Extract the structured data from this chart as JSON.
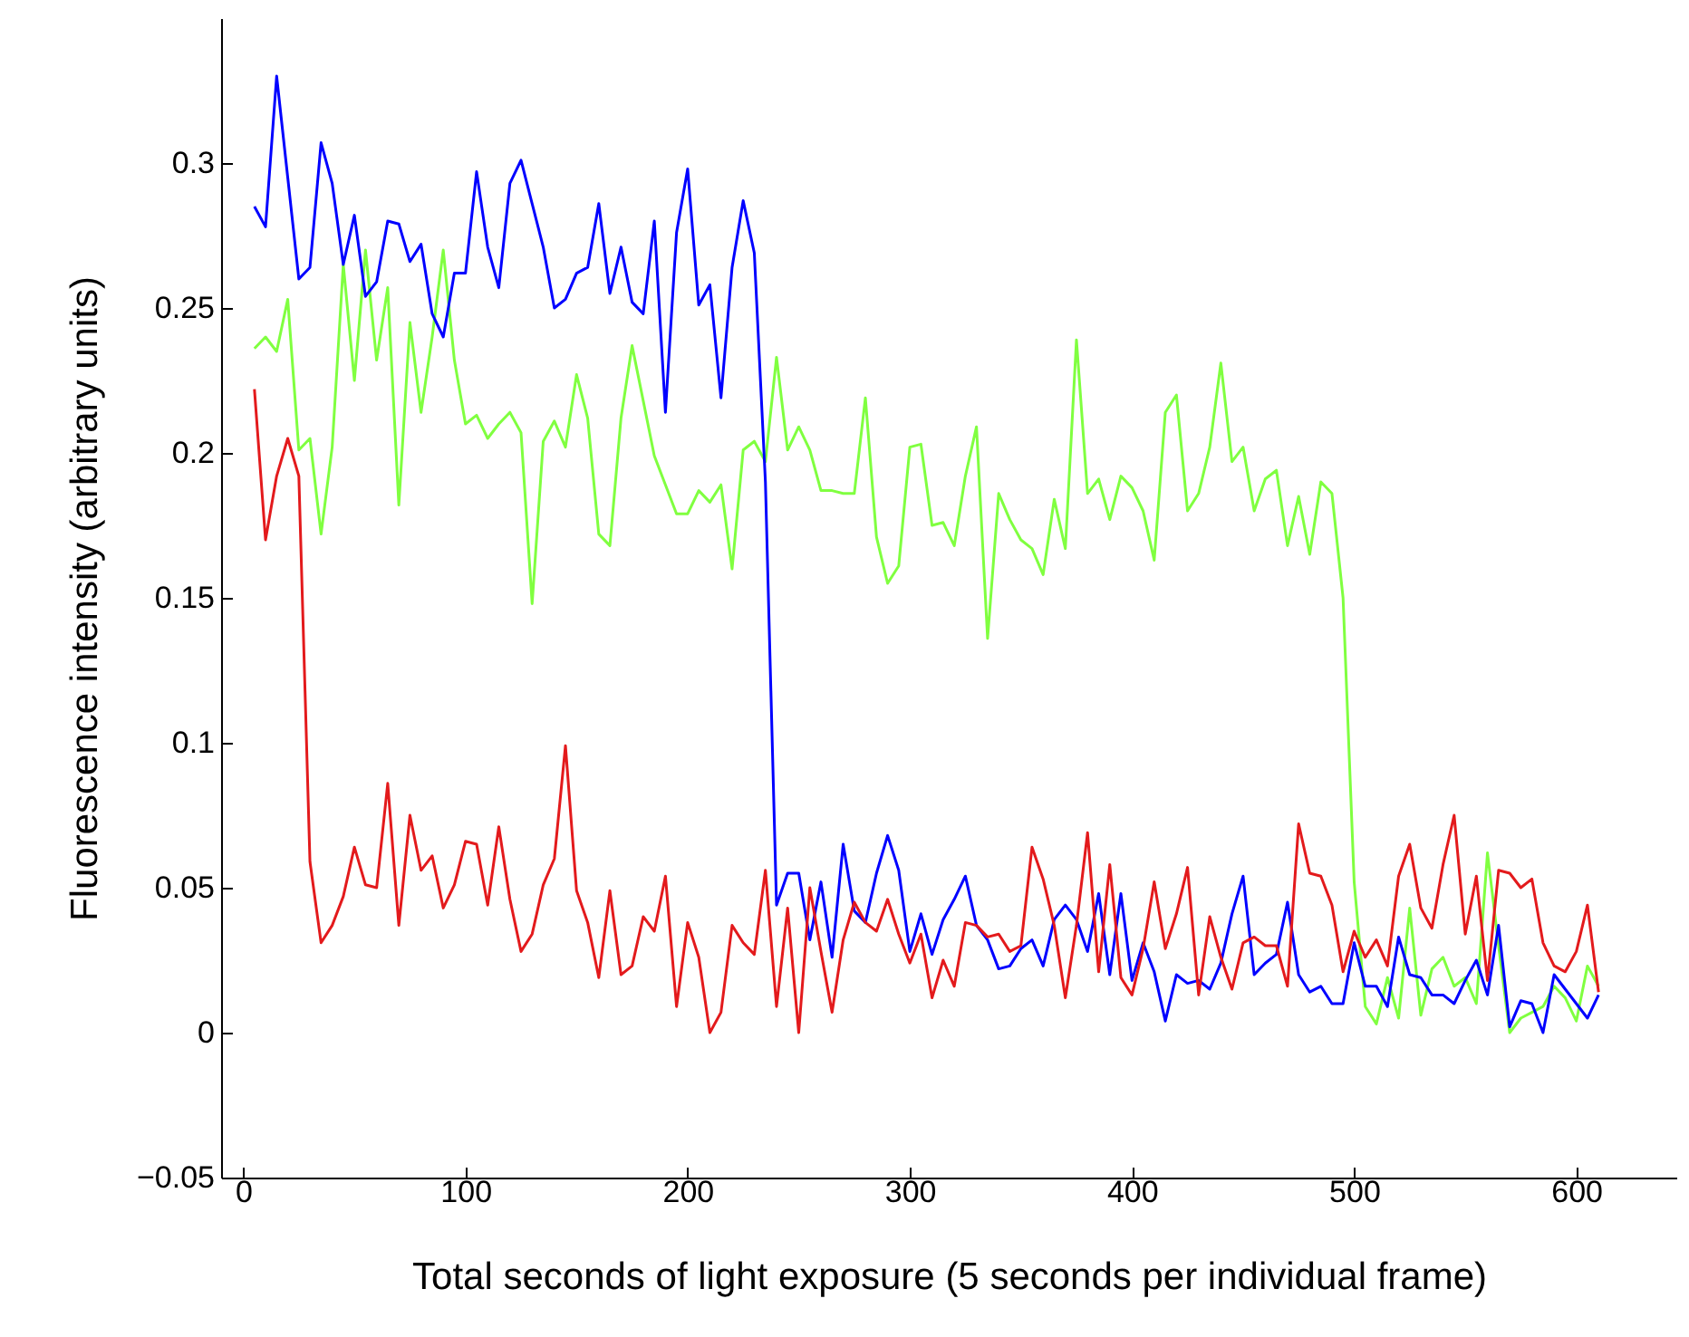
{
  "chart_data": {
    "type": "line",
    "xlabel": "Total seconds of light exposure (5 seconds per individual frame)",
    "ylabel": "Fluorescence intensity (arbitrary units)",
    "x": [
      5,
      10,
      15,
      20,
      25,
      30,
      35,
      40,
      45,
      50,
      55,
      60,
      65,
      70,
      75,
      80,
      85,
      90,
      95,
      100,
      105,
      110,
      115,
      120,
      125,
      130,
      135,
      140,
      145,
      150,
      155,
      160,
      165,
      170,
      175,
      180,
      185,
      190,
      195,
      200,
      205,
      210,
      215,
      220,
      225,
      230,
      235,
      240,
      245,
      250,
      255,
      260,
      265,
      270,
      275,
      280,
      285,
      290,
      295,
      300,
      305,
      310,
      315,
      320,
      325,
      330,
      335,
      340,
      345,
      350,
      355,
      360,
      365,
      370,
      375,
      380,
      385,
      390,
      395,
      400,
      405,
      410,
      415,
      420,
      425,
      430,
      435,
      440,
      445,
      450,
      455,
      460,
      465,
      470,
      475,
      480,
      485,
      490,
      495,
      500,
      505,
      510,
      515,
      520,
      525,
      530,
      535,
      540,
      545,
      550,
      555,
      560,
      565,
      570,
      575,
      580,
      585,
      590,
      595,
      600,
      605,
      610
    ],
    "series": [
      {
        "color": "#80ff40",
        "values": [
          0.236,
          0.24,
          0.235,
          0.253,
          0.201,
          0.205,
          0.172,
          0.202,
          0.265,
          0.225,
          0.27,
          0.232,
          0.257,
          0.182,
          0.245,
          0.214,
          0.24,
          0.27,
          0.232,
          0.21,
          0.213,
          0.205,
          0.21,
          0.214,
          0.207,
          0.148,
          0.204,
          0.211,
          0.202,
          0.227,
          0.212,
          0.172,
          0.168,
          0.212,
          0.237,
          0.218,
          0.199,
          0.189,
          0.179,
          0.179,
          0.187,
          0.183,
          0.189,
          0.16,
          0.201,
          0.204,
          0.197,
          0.233,
          0.201,
          0.209,
          0.201,
          0.187,
          0.187,
          0.186,
          0.186,
          0.219,
          0.171,
          0.155,
          0.161,
          0.202,
          0.203,
          0.175,
          0.176,
          0.168,
          0.192,
          0.209,
          0.136,
          0.186,
          0.177,
          0.17,
          0.167,
          0.158,
          0.184,
          0.167,
          0.239,
          0.186,
          0.191,
          0.177,
          0.192,
          0.188,
          0.18,
          0.163,
          0.214,
          0.22,
          0.18,
          0.186,
          0.202,
          0.231,
          0.197,
          0.202,
          0.18,
          0.191,
          0.194,
          0.168,
          0.185,
          0.165,
          0.19,
          0.186,
          0.15,
          0.052,
          0.009,
          0.003,
          0.019,
          0.005,
          0.043,
          0.006,
          0.022,
          0.026,
          0.016,
          0.019,
          0.01,
          0.062,
          0.03,
          0.0,
          0.005,
          0.007,
          0.009,
          0.016,
          0.012,
          0.004,
          0.023,
          0.016
        ]
      },
      {
        "color": "#0000ff",
        "values": [
          0.285,
          0.278,
          0.33,
          0.295,
          0.26,
          0.264,
          0.307,
          0.293,
          0.265,
          0.282,
          0.254,
          0.259,
          0.28,
          0.279,
          0.266,
          0.272,
          0.248,
          0.24,
          0.262,
          0.262,
          0.297,
          0.271,
          0.257,
          0.293,
          0.301,
          0.286,
          0.271,
          0.25,
          0.253,
          0.262,
          0.264,
          0.286,
          0.255,
          0.271,
          0.252,
          0.248,
          0.28,
          0.214,
          0.276,
          0.298,
          0.251,
          0.258,
          0.219,
          0.264,
          0.287,
          0.269,
          0.19,
          0.044,
          0.055,
          0.055,
          0.032,
          0.052,
          0.026,
          0.065,
          0.042,
          0.038,
          0.055,
          0.068,
          0.056,
          0.028,
          0.041,
          0.027,
          0.039,
          0.046,
          0.054,
          0.037,
          0.032,
          0.022,
          0.023,
          0.029,
          0.032,
          0.023,
          0.039,
          0.044,
          0.039,
          0.028,
          0.048,
          0.02,
          0.048,
          0.018,
          0.031,
          0.021,
          0.004,
          0.02,
          0.017,
          0.018,
          0.015,
          0.024,
          0.041,
          0.054,
          0.02,
          0.024,
          0.027,
          0.045,
          0.02,
          0.014,
          0.016,
          0.01,
          0.01,
          0.031,
          0.016,
          0.016,
          0.009,
          0.033,
          0.02,
          0.019,
          0.013,
          0.013,
          0.01,
          0.018,
          0.025,
          0.013,
          0.037,
          0.002,
          0.011,
          0.01,
          0.0,
          0.02,
          0.015,
          0.01,
          0.005,
          0.013
        ]
      },
      {
        "color": "#e31a1c",
        "values": [
          0.222,
          0.17,
          0.192,
          0.205,
          0.192,
          0.059,
          0.031,
          0.037,
          0.047,
          0.064,
          0.051,
          0.05,
          0.086,
          0.037,
          0.075,
          0.056,
          0.061,
          0.043,
          0.051,
          0.066,
          0.065,
          0.044,
          0.071,
          0.046,
          0.028,
          0.034,
          0.051,
          0.06,
          0.099,
          0.049,
          0.038,
          0.019,
          0.049,
          0.02,
          0.023,
          0.04,
          0.035,
          0.054,
          0.009,
          0.038,
          0.026,
          0.0,
          0.007,
          0.037,
          0.031,
          0.027,
          0.056,
          0.009,
          0.043,
          0.0,
          0.05,
          0.028,
          0.007,
          0.032,
          0.045,
          0.038,
          0.035,
          0.046,
          0.034,
          0.024,
          0.034,
          0.012,
          0.025,
          0.016,
          0.038,
          0.037,
          0.033,
          0.034,
          0.028,
          0.03,
          0.064,
          0.053,
          0.037,
          0.012,
          0.037,
          0.069,
          0.021,
          0.058,
          0.019,
          0.013,
          0.029,
          0.052,
          0.029,
          0.041,
          0.057,
          0.013,
          0.04,
          0.026,
          0.015,
          0.031,
          0.033,
          0.03,
          0.03,
          0.016,
          0.072,
          0.055,
          0.054,
          0.044,
          0.021,
          0.035,
          0.026,
          0.032,
          0.023,
          0.054,
          0.065,
          0.043,
          0.036,
          0.058,
          0.075,
          0.034,
          0.054,
          0.018,
          0.056,
          0.055,
          0.05,
          0.053,
          0.031,
          0.023,
          0.021,
          0.028,
          0.044,
          0.014
        ]
      }
    ],
    "xlim": [
      -10,
      645
    ],
    "xticks": [
      0,
      100,
      200,
      300,
      400,
      500,
      600
    ],
    "ylim": [
      -0.05,
      0.35
    ],
    "yticks": [
      {
        "value": -0.05,
        "label": "−0.05"
      },
      0,
      0.05,
      0.1,
      0.15,
      0.2,
      0.25,
      0.3
    ]
  }
}
